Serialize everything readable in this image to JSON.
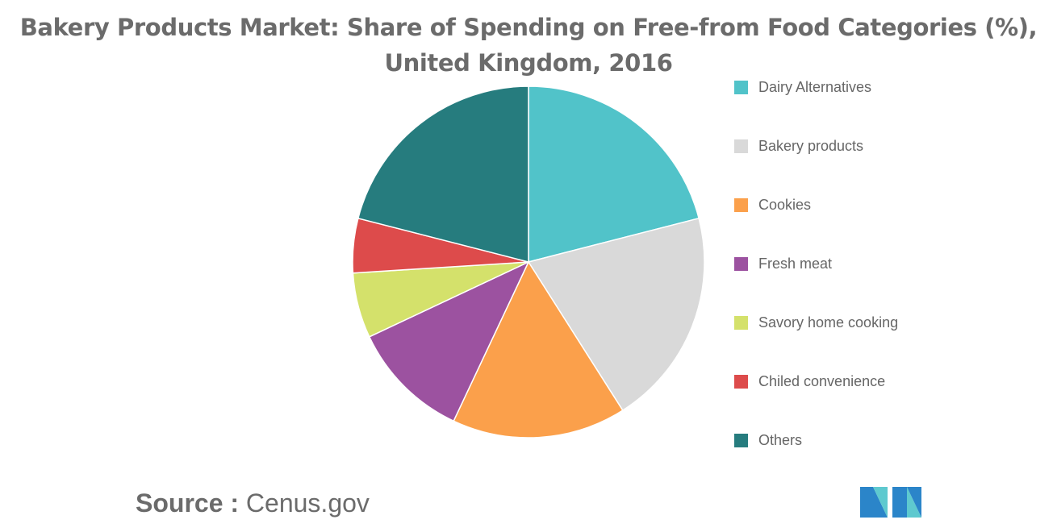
{
  "title": "Bakery Products Market: Share of Spending on Free-from Food Categories (%), United Kingdom, 2016",
  "chart_data": {
    "type": "pie",
    "title": "Bakery Products Market: Share of Spending on Free-from Food Categories (%), United Kingdom, 2016",
    "categories": [
      "Dairy Alternatives",
      "Bakery products",
      "Cookies",
      "Fresh meat",
      "Savory home cooking",
      "Chiled convenience",
      "Others"
    ],
    "values": [
      21,
      20,
      16,
      11,
      6,
      5,
      21
    ],
    "colors": [
      "#51c3c9",
      "#d9d9d9",
      "#fba04b",
      "#9c52a0",
      "#d4e16b",
      "#dd4b4b",
      "#267c7e"
    ],
    "legend_position": "right"
  },
  "source": {
    "label": "Source :",
    "value": "Cenus.gov"
  },
  "logo": {
    "icon": "mordor-intelligence-logo",
    "colors": [
      "#2b85c9",
      "#5ec9cf"
    ]
  }
}
